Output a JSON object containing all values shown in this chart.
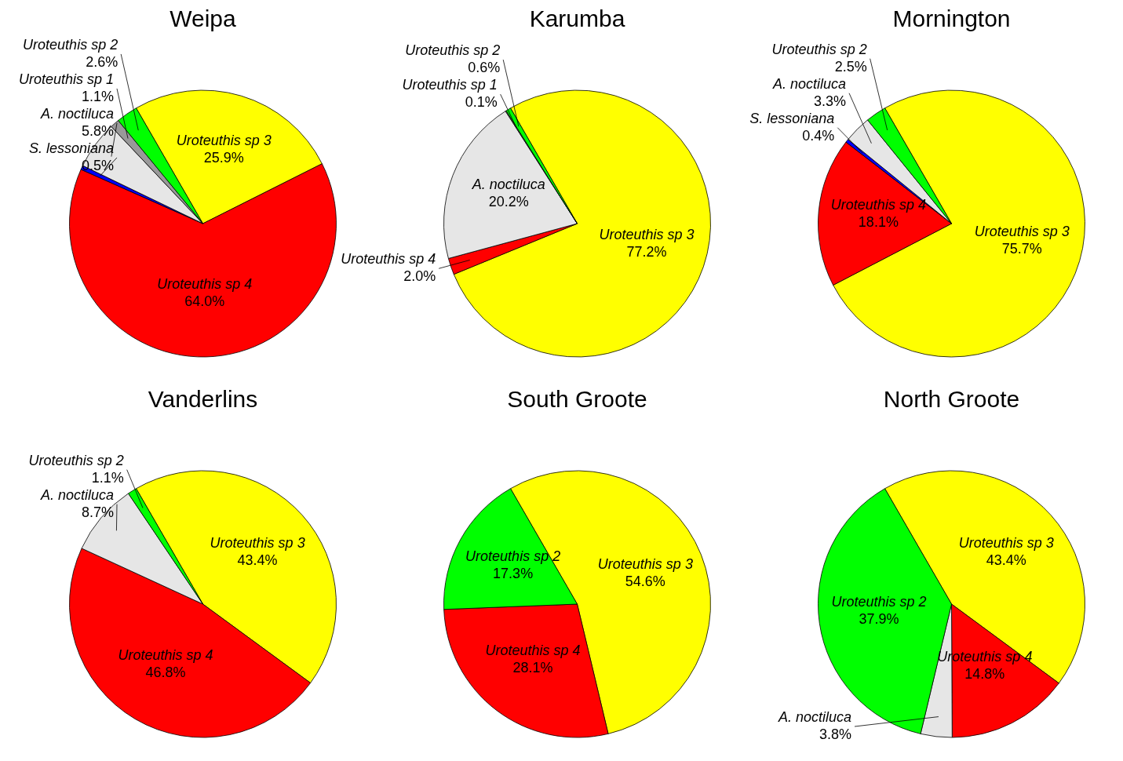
{
  "chart_data": [
    {
      "type": "pie",
      "title": "Weipa",
      "categories": [
        "Uroteuthis sp 3",
        "Uroteuthis sp 4",
        "S. lessoniana",
        "A. noctiluca",
        "Uroteuthis sp 1",
        "Uroteuthis sp 2"
      ],
      "values": [
        25.9,
        64.0,
        0.5,
        5.8,
        1.1,
        2.6
      ],
      "value_labels": [
        "25.9%",
        "64.0%",
        "0.5%",
        "5.8%",
        "1.1%",
        "2.6%"
      ],
      "colors": [
        "#ffff00",
        "#ff0000",
        "#0000ff",
        "#e6e6e6",
        "#999999",
        "#00ff00"
      ]
    },
    {
      "type": "pie",
      "title": "Karumba",
      "categories": [
        "Uroteuthis sp 3",
        "Uroteuthis sp 4",
        "A. noctiluca",
        "Uroteuthis sp 1",
        "Uroteuthis sp 2"
      ],
      "values": [
        77.2,
        2.0,
        20.2,
        0.1,
        0.6
      ],
      "value_labels": [
        "77.2%",
        "2.0%",
        "20.2%",
        "0.1%",
        "0.6%"
      ],
      "colors": [
        "#ffff00",
        "#ff0000",
        "#e6e6e6",
        "#999999",
        "#00ff00"
      ]
    },
    {
      "type": "pie",
      "title": "Mornington",
      "categories": [
        "Uroteuthis sp 3",
        "Uroteuthis sp 4",
        "S. lessoniana",
        "A. noctiluca",
        "Uroteuthis sp 2"
      ],
      "values": [
        75.7,
        18.1,
        0.4,
        3.3,
        2.5
      ],
      "value_labels": [
        "75.7%",
        "18.1%",
        "0.4%",
        "3.3%",
        "2.5%"
      ],
      "colors": [
        "#ffff00",
        "#ff0000",
        "#0000ff",
        "#e6e6e6",
        "#00ff00"
      ]
    },
    {
      "type": "pie",
      "title": "Vanderlins",
      "categories": [
        "Uroteuthis sp 3",
        "Uroteuthis sp 4",
        "A. noctiluca",
        "Uroteuthis sp 2"
      ],
      "values": [
        43.4,
        46.8,
        8.7,
        1.1
      ],
      "value_labels": [
        "43.4%",
        "46.8%",
        "8.7%",
        "1.1%"
      ],
      "colors": [
        "#ffff00",
        "#ff0000",
        "#e6e6e6",
        "#00ff00"
      ]
    },
    {
      "type": "pie",
      "title": "South Groote",
      "categories": [
        "Uroteuthis sp 3",
        "Uroteuthis sp 4",
        "Uroteuthis sp 2"
      ],
      "values": [
        54.6,
        28.1,
        17.3
      ],
      "value_labels": [
        "54.6%",
        "28.1%",
        "17.3%"
      ],
      "colors": [
        "#ffff00",
        "#ff0000",
        "#00ff00"
      ]
    },
    {
      "type": "pie",
      "title": "North Groote",
      "categories": [
        "Uroteuthis sp 3",
        "Uroteuthis sp 4",
        "A. noctiluca",
        "Uroteuthis sp 2"
      ],
      "values": [
        43.4,
        14.8,
        3.8,
        37.9
      ],
      "value_labels": [
        "43.4%",
        "14.8%",
        "3.8%",
        "37.9%"
      ],
      "colors": [
        "#ffff00",
        "#ff0000",
        "#e6e6e6",
        "#00ff00"
      ]
    }
  ]
}
